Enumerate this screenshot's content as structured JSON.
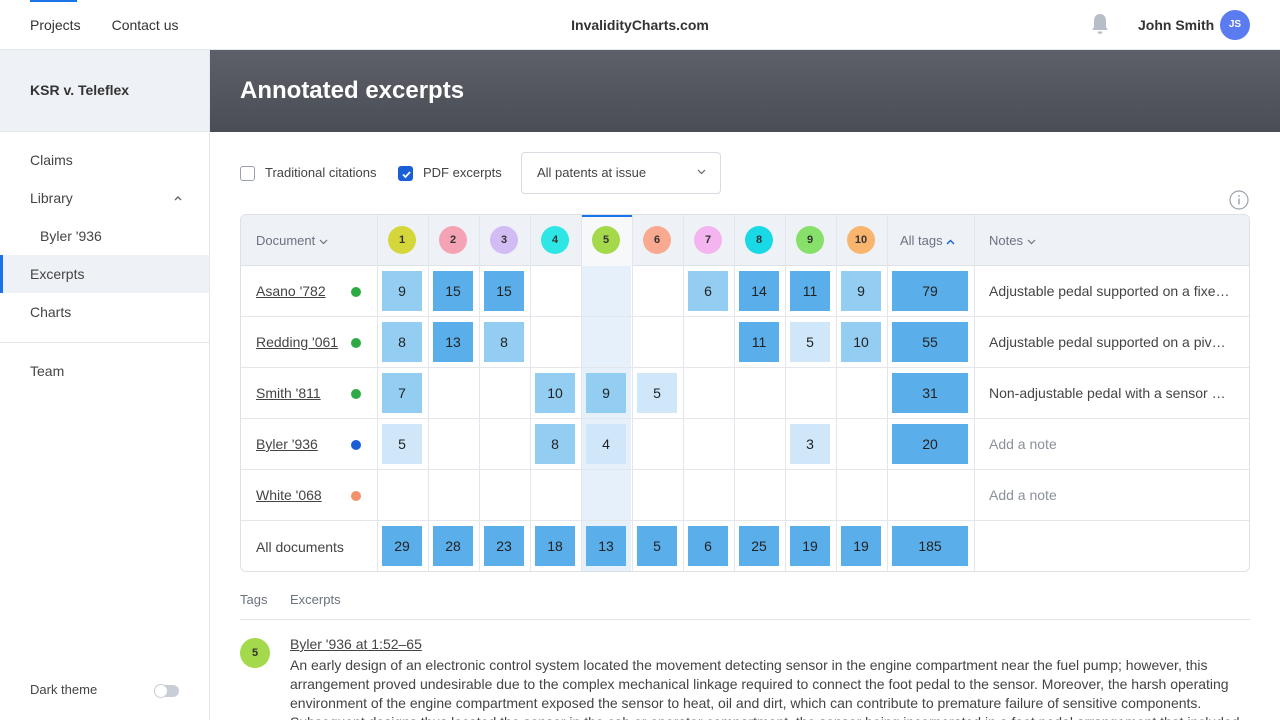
{
  "topbar": {
    "nav": [
      "Projects",
      "Contact us"
    ],
    "brand": "InvalidityCharts.com",
    "user_name": "John Smith",
    "user_initials": "JS",
    "icons": [
      "bell-icon"
    ]
  },
  "sidebar": {
    "project": "KSR v. Teleflex",
    "claims": "Claims",
    "library": "Library",
    "library_sub": "Byler '936",
    "excerpts": "Excerpts",
    "charts": "Charts",
    "team": "Team",
    "dark_theme": "Dark theme"
  },
  "page": {
    "title": "Annotated excerpts"
  },
  "filters": {
    "traditional": {
      "label": "Traditional citations",
      "checked": false
    },
    "pdf": {
      "label": "PDF excerpts",
      "checked": true
    },
    "patents_select": "All patents at issue"
  },
  "table": {
    "document_header": "Document",
    "all_tags_header": "All tags",
    "notes_header": "Notes",
    "selected_tag": "5",
    "tags": [
      {
        "label": "1",
        "color": "#d4d63a"
      },
      {
        "label": "2",
        "color": "#f4a3b4"
      },
      {
        "label": "3",
        "color": "#d2bcf4"
      },
      {
        "label": "4",
        "color": "#2ee6e6"
      },
      {
        "label": "5",
        "color": "#a3d94a"
      },
      {
        "label": "6",
        "color": "#f8a98f"
      },
      {
        "label": "7",
        "color": "#f4b4f0"
      },
      {
        "label": "8",
        "color": "#19d9e6"
      },
      {
        "label": "9",
        "color": "#86e06a"
      },
      {
        "label": "10",
        "color": "#f9b46e"
      }
    ],
    "rows": [
      {
        "doc": "Asano '782",
        "status_color": "#2eaa44",
        "cells": [
          "9",
          "15",
          "15",
          "",
          "",
          "",
          "6",
          "14",
          "11",
          "9"
        ],
        "total": "79",
        "note": "Adjustable pedal supported on a fixed…"
      },
      {
        "doc": "Redding '061",
        "status_color": "#2eaa44",
        "cells": [
          "8",
          "13",
          "8",
          "",
          "",
          "",
          "",
          "11",
          "5",
          "10"
        ],
        "total": "55",
        "note": "Adjustable pedal supported on a pivot…"
      },
      {
        "doc": "Smith '811",
        "status_color": "#2eaa44",
        "cells": [
          "7",
          "",
          "",
          "10",
          "9",
          "5",
          "",
          "",
          "",
          ""
        ],
        "total": "31",
        "note": "Non-adjustable pedal with a sensor and…"
      },
      {
        "doc": "Byler '936",
        "status_color": "#1a5fd6",
        "cells": [
          "5",
          "",
          "",
          "8",
          "4",
          "",
          "",
          "",
          "3",
          ""
        ],
        "total": "20",
        "note": "Add a note"
      },
      {
        "doc": "White '068",
        "status_color": "#f4906b",
        "cells": [
          "",
          "",
          "",
          "",
          "",
          "",
          "",
          "",
          "",
          ""
        ],
        "total": "",
        "note": "Add a note"
      }
    ],
    "totals_label": "All documents",
    "totals": [
      "29",
      "28",
      "23",
      "18",
      "13",
      "5",
      "6",
      "25",
      "19",
      "19"
    ],
    "grand_total": "185",
    "max_value": 15
  },
  "bottom": {
    "tabs": [
      "Tags",
      "Excerpts"
    ],
    "excerpt_tag": "5",
    "excerpt_title": "Byler '936 at 1:52–65",
    "excerpt_text": "An early design of an electronic control system located the movement detecting sensor in the engine compartment near the fuel pump; however, this arrangement proved undesirable due to the complex mechanical linkage required to connect the foot pedal to the sensor. Moreover, the harsh operating environment of the engine compartment exposed the sensor to heat, oil and dirt, which can contribute to premature failure of sensitive components. Subsequent designs thus located the sensor in the cab or operator compartment, the sensor being incorporated in a foot pedal arrangement that included"
  }
}
